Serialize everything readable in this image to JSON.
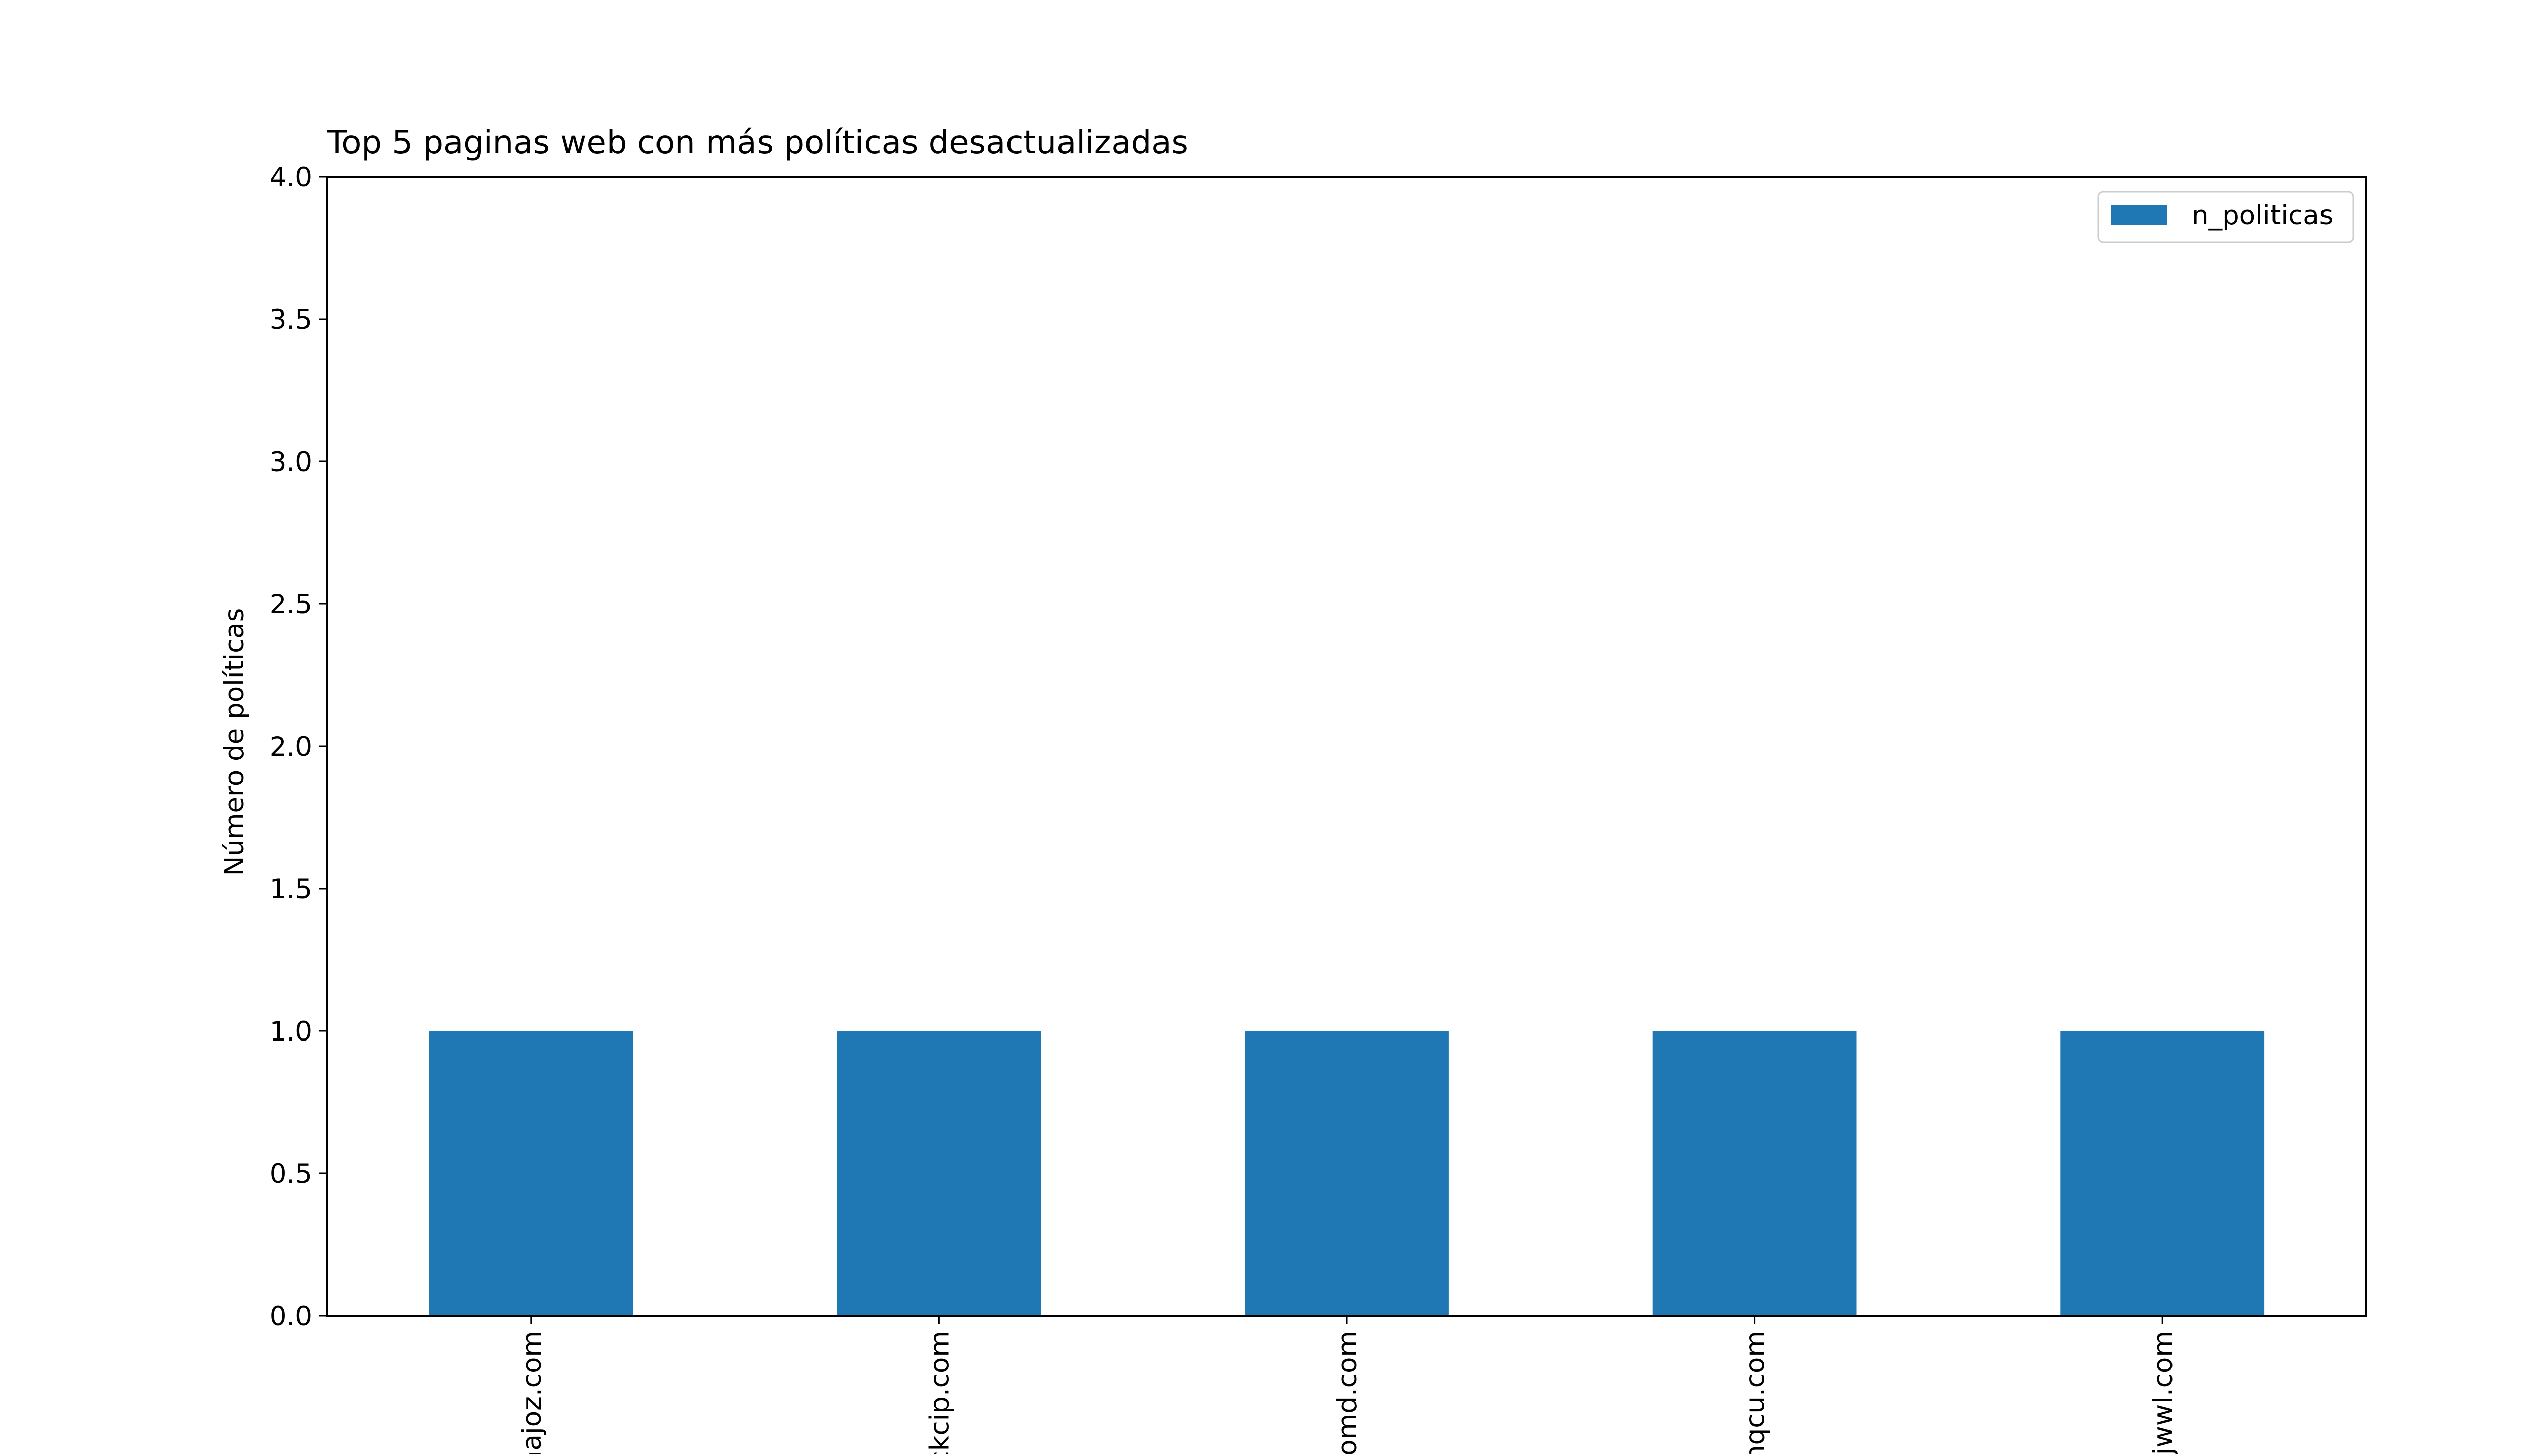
{
  "chart_data": {
    "type": "bar",
    "title": "Top 5 paginas web con más políticas desactualizadas",
    "xlabel": "",
    "ylabel": "Número de políticas",
    "categories": [
      "aajoz.com",
      "ckcip.com",
      "oomd.com",
      "hqcu.com",
      "ijwwl.com"
    ],
    "series": [
      {
        "name": "n_politicas",
        "color": "#1f77b4",
        "values": [
          1,
          1,
          1,
          1,
          1
        ]
      }
    ],
    "ylim": [
      0,
      4
    ],
    "yticks": [
      "0.0",
      "0.5",
      "1.0",
      "1.5",
      "2.0",
      "2.5",
      "3.0",
      "3.5",
      "4.0"
    ],
    "grid": false,
    "legend_position": "top-right"
  }
}
